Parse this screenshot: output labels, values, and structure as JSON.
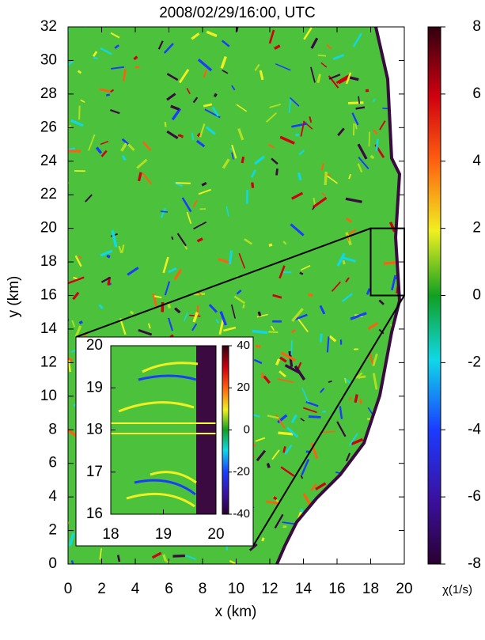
{
  "chart_data": {
    "type": "heatmap",
    "title": "2008/02/29/16:00, UTC",
    "x_label": "x (km)",
    "y_label": "y (km)",
    "colorbar_label": "χ(1/s)",
    "xlim": [
      0,
      20
    ],
    "ylim": [
      0,
      32
    ],
    "xticks": [
      0,
      2,
      4,
      6,
      8,
      10,
      12,
      14,
      16,
      18,
      20
    ],
    "yticks": [
      0,
      2,
      4,
      6,
      8,
      10,
      12,
      14,
      16,
      18,
      20,
      22,
      24,
      26,
      28,
      30,
      32
    ],
    "clim": [
      -8,
      8
    ],
    "cticks": [
      -8,
      -6,
      -4,
      -2,
      0,
      2,
      4,
      6,
      8
    ],
    "inset": {
      "xlim": [
        18,
        20
      ],
      "ylim": [
        16,
        20
      ],
      "xticks": [
        18,
        19,
        20
      ],
      "yticks": [
        16,
        17,
        18,
        19,
        20
      ],
      "clim": [
        -40,
        40
      ],
      "cticks": [
        -40,
        -20,
        0,
        20,
        40
      ]
    }
  }
}
